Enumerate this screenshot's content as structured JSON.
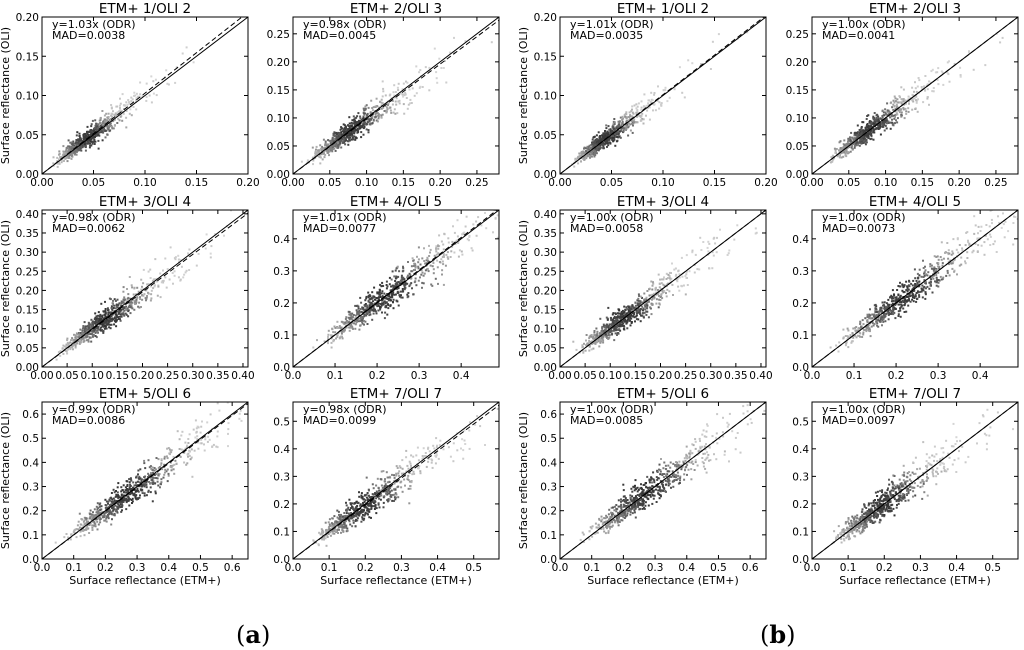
{
  "panel_labels": {
    "a": "a",
    "b": "b"
  },
  "chart_data": [
    {
      "type": "scatter",
      "group": "a",
      "title": "ETM+ 1/OLI 2",
      "annotation": [
        "y=1.03x (ODR)",
        "MAD=0.0038"
      ],
      "slope": 1.03,
      "xlim": [
        0,
        0.2
      ],
      "ylim": [
        0,
        0.2
      ],
      "xticks": [
        "0.00",
        "0.05",
        "0.10",
        "0.15",
        "0.20"
      ],
      "yticks": [
        "0.00",
        "0.05",
        "0.10",
        "0.15",
        "0.20"
      ],
      "center": 0.045,
      "spread": 0.012,
      "xlabel": "",
      "ylabel": "Surface reflectance (OLI)"
    },
    {
      "type": "scatter",
      "group": "a",
      "title": "ETM+ 2/OLI 3",
      "annotation": [
        "y=0.98x (ODR)",
        "MAD=0.0045"
      ],
      "slope": 0.98,
      "xlim": [
        0,
        0.28
      ],
      "ylim": [
        0,
        0.28
      ],
      "xticks": [
        "0.00",
        "0.05",
        "0.10",
        "0.15",
        "0.20",
        "0.25"
      ],
      "yticks": [
        "0.00",
        "0.05",
        "0.10",
        "0.15",
        "0.20",
        "0.25"
      ],
      "center": 0.08,
      "spread": 0.018,
      "xlabel": "",
      "ylabel": ""
    },
    {
      "type": "scatter",
      "group": "b",
      "title": "ETM+ 1/OLI 2",
      "annotation": [
        "y=1.01x (ODR)",
        "MAD=0.0035"
      ],
      "slope": 1.01,
      "xlim": [
        0,
        0.2
      ],
      "ylim": [
        0,
        0.2
      ],
      "xticks": [
        "0.00",
        "0.05",
        "0.10",
        "0.15",
        "0.20"
      ],
      "yticks": [
        "0.00",
        "0.05",
        "0.10",
        "0.15",
        "0.20"
      ],
      "center": 0.045,
      "spread": 0.012,
      "xlabel": "",
      "ylabel": "Surface reflectance (OLI)"
    },
    {
      "type": "scatter",
      "group": "b",
      "title": "ETM+ 2/OLI 3",
      "annotation": [
        "y=1.00x (ODR)",
        "MAD=0.0041"
      ],
      "slope": 1.0,
      "xlim": [
        0,
        0.28
      ],
      "ylim": [
        0,
        0.28
      ],
      "xticks": [
        "0.00",
        "0.05",
        "0.10",
        "0.15",
        "0.20",
        "0.25"
      ],
      "yticks": [
        "0.00",
        "0.05",
        "0.10",
        "0.15",
        "0.20",
        "0.25"
      ],
      "center": 0.08,
      "spread": 0.018,
      "xlabel": "",
      "ylabel": ""
    },
    {
      "type": "scatter",
      "group": "a",
      "title": "ETM+ 3/OLI 4",
      "annotation": [
        "y=0.98x (ODR)",
        "MAD=0.0062"
      ],
      "slope": 0.98,
      "xlim": [
        0,
        0.41
      ],
      "ylim": [
        0,
        0.41
      ],
      "xticks": [
        "0.00",
        "0.05",
        "0.10",
        "0.15",
        "0.20",
        "0.25",
        "0.30",
        "0.35",
        "0.40"
      ],
      "yticks": [
        "0.00",
        "0.05",
        "0.10",
        "0.15",
        "0.20",
        "0.25",
        "0.30",
        "0.35",
        "0.40"
      ],
      "center": 0.13,
      "spread": 0.03,
      "xlabel": "",
      "ylabel": "Surface reflectance (OLI)"
    },
    {
      "type": "scatter",
      "group": "a",
      "title": "ETM+ 4/OLI 5",
      "annotation": [
        "y=1.01x (ODR)",
        "MAD=0.0077"
      ],
      "slope": 1.01,
      "xlim": [
        0,
        0.49
      ],
      "ylim": [
        0,
        0.49
      ],
      "xticks": [
        "0.0",
        "0.1",
        "0.2",
        "0.3",
        "0.4"
      ],
      "yticks": [
        "0.0",
        "0.1",
        "0.2",
        "0.3",
        "0.4"
      ],
      "center": 0.22,
      "spread": 0.04,
      "xlabel": "",
      "ylabel": ""
    },
    {
      "type": "scatter",
      "group": "b",
      "title": "ETM+ 3/OLI 4",
      "annotation": [
        "y=1.00x (ODR)",
        "MAD=0.0058"
      ],
      "slope": 1.0,
      "xlim": [
        0,
        0.41
      ],
      "ylim": [
        0,
        0.41
      ],
      "xticks": [
        "0.00",
        "0.05",
        "0.10",
        "0.15",
        "0.20",
        "0.25",
        "0.30",
        "0.35",
        "0.40"
      ],
      "yticks": [
        "0.00",
        "0.05",
        "0.10",
        "0.15",
        "0.20",
        "0.25",
        "0.30",
        "0.35",
        "0.40"
      ],
      "center": 0.13,
      "spread": 0.03,
      "xlabel": "",
      "ylabel": "Surface reflectance (OLI)"
    },
    {
      "type": "scatter",
      "group": "b",
      "title": "ETM+ 4/OLI 5",
      "annotation": [
        "y=1.00x (ODR)",
        "MAD=0.0073"
      ],
      "slope": 1.0,
      "xlim": [
        0,
        0.49
      ],
      "ylim": [
        0,
        0.49
      ],
      "xticks": [
        "0.0",
        "0.1",
        "0.2",
        "0.3",
        "0.4"
      ],
      "yticks": [
        "0.0",
        "0.1",
        "0.2",
        "0.3",
        "0.4"
      ],
      "center": 0.22,
      "spread": 0.04,
      "xlabel": "",
      "ylabel": ""
    },
    {
      "type": "scatter",
      "group": "a",
      "title": "ETM+ 5/OLI 6",
      "annotation": [
        "y=0.99x (ODR)",
        "MAD=0.0086"
      ],
      "slope": 0.99,
      "xlim": [
        0,
        0.65
      ],
      "ylim": [
        0,
        0.65
      ],
      "xticks": [
        "0.0",
        "0.1",
        "0.2",
        "0.3",
        "0.4",
        "0.5",
        "0.6"
      ],
      "yticks": [
        "0.0",
        "0.1",
        "0.2",
        "0.3",
        "0.4",
        "0.5",
        "0.6"
      ],
      "center": 0.27,
      "spread": 0.05,
      "xlabel": "Surface reflectance (ETM+)",
      "ylabel": "Surface reflectance (OLI)"
    },
    {
      "type": "scatter",
      "group": "a",
      "title": "ETM+ 7/OLI 7",
      "annotation": [
        "y=0.98x (ODR)",
        "MAD=0.0099"
      ],
      "slope": 0.98,
      "xlim": [
        0,
        0.57
      ],
      "ylim": [
        0,
        0.57
      ],
      "xticks": [
        "0.0",
        "0.1",
        "0.2",
        "0.3",
        "0.4",
        "0.5"
      ],
      "yticks": [
        "0.0",
        "0.1",
        "0.2",
        "0.3",
        "0.4",
        "0.5"
      ],
      "center": 0.2,
      "spread": 0.05,
      "xlabel": "Surface reflectance (ETM+)",
      "ylabel": ""
    },
    {
      "type": "scatter",
      "group": "b",
      "title": "ETM+ 5/OLI 6",
      "annotation": [
        "y=1.00x (ODR)",
        "MAD=0.0085"
      ],
      "slope": 1.0,
      "xlim": [
        0,
        0.65
      ],
      "ylim": [
        0,
        0.65
      ],
      "xticks": [
        "0.0",
        "0.1",
        "0.2",
        "0.3",
        "0.4",
        "0.5",
        "0.6"
      ],
      "yticks": [
        "0.0",
        "0.1",
        "0.2",
        "0.3",
        "0.4",
        "0.5",
        "0.6"
      ],
      "center": 0.27,
      "spread": 0.05,
      "xlabel": "Surface reflectance (ETM+)",
      "ylabel": "Surface reflectance (OLI)"
    },
    {
      "type": "scatter",
      "group": "b",
      "title": "ETM+ 7/OLI 7",
      "annotation": [
        "y=1.00x (ODR)",
        "MAD=0.0097"
      ],
      "slope": 1.0,
      "xlim": [
        0,
        0.57
      ],
      "ylim": [
        0,
        0.57
      ],
      "xticks": [
        "0.0",
        "0.1",
        "0.2",
        "0.3",
        "0.4",
        "0.5"
      ],
      "yticks": [
        "0.0",
        "0.1",
        "0.2",
        "0.3",
        "0.4",
        "0.5"
      ],
      "center": 0.2,
      "spread": 0.05,
      "xlabel": "Surface reflectance (ETM+)",
      "ylabel": ""
    }
  ]
}
